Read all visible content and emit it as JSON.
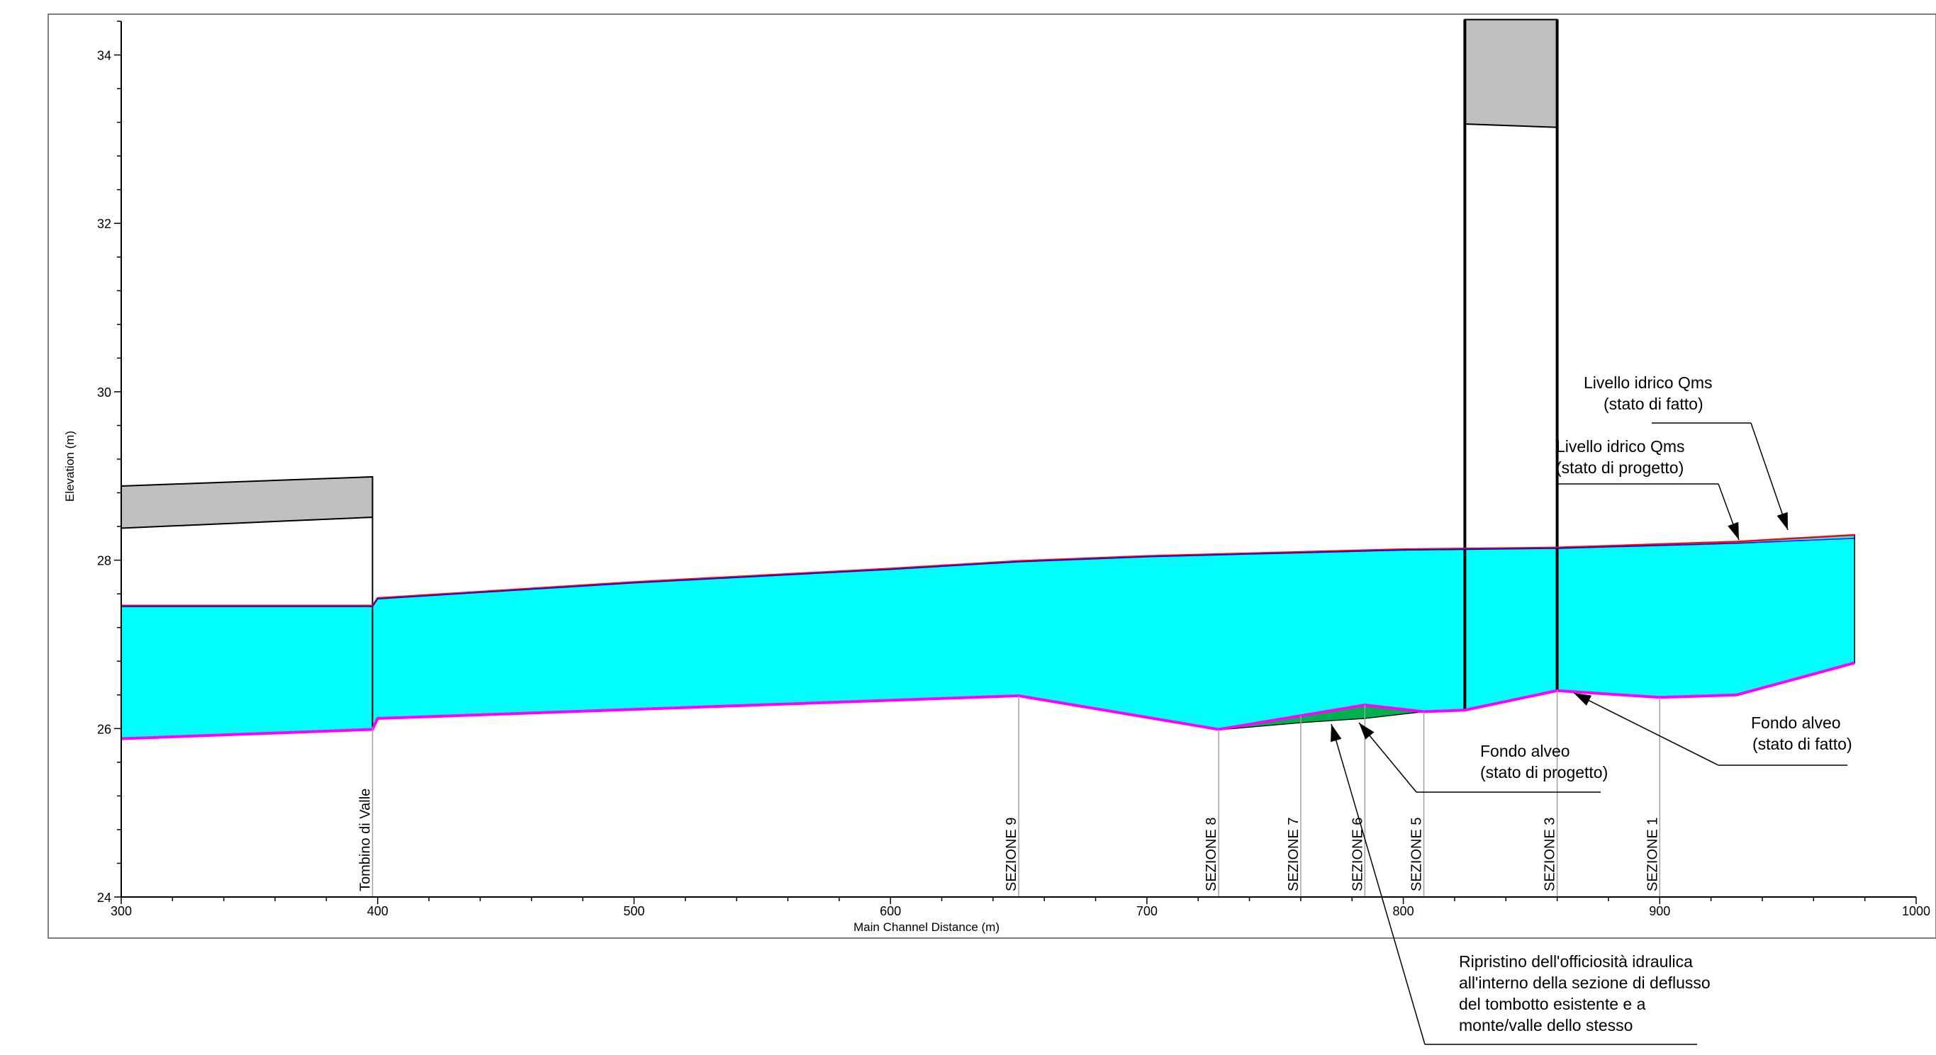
{
  "chart_data": {
    "type": "area",
    "xlabel": "Main Channel Distance (m)",
    "ylabel": "Elevation (m)",
    "xlim": [
      300,
      1000
    ],
    "ylim": [
      24,
      34.4
    ],
    "x_ticks": [
      300,
      400,
      500,
      600,
      700,
      800,
      900,
      1000
    ],
    "y_ticks": [
      24,
      26,
      28,
      30,
      32,
      34
    ],
    "grid": false,
    "colors": {
      "water": "#00ffff",
      "bed_existing": "#ff00ff",
      "bed_project": "#00b050",
      "water_surface_existing": "#ff0000",
      "water_surface_project": "#0000ff",
      "culvert_deck": "#c0c0c0",
      "section_line": "#a0a0a0"
    },
    "series": [
      {
        "key": "bed_existing",
        "x": [
          300,
          398,
          400,
          650,
          728,
          785,
          808,
          824,
          860,
          900,
          930,
          976
        ],
        "values": [
          25.88,
          25.99,
          26.12,
          26.39,
          25.99,
          26.28,
          26.2,
          26.22,
          26.45,
          26.37,
          26.4,
          26.78
        ]
      },
      {
        "key": "bed_project",
        "x": [
          730,
          760,
          785,
          808
        ],
        "values": [
          25.99,
          26.07,
          26.12,
          26.2
        ]
      },
      {
        "key": "water_surface_existing",
        "x": [
          300,
          398,
          400,
          500,
          600,
          650,
          700,
          800,
          860,
          930,
          976
        ],
        "values": [
          27.46,
          27.46,
          27.55,
          27.74,
          27.9,
          27.99,
          28.05,
          28.13,
          28.15,
          28.22,
          28.3
        ]
      },
      {
        "key": "water_surface_project",
        "x": [
          300,
          398,
          400,
          500,
          600,
          650,
          700,
          800,
          860,
          930,
          976
        ],
        "values": [
          27.45,
          27.45,
          27.54,
          27.73,
          27.89,
          27.98,
          28.04,
          28.12,
          28.14,
          28.2,
          28.26
        ]
      }
    ],
    "structures": [
      {
        "key": "tombino-valle",
        "x_left": 300,
        "x_right": 398,
        "soffit": [
          28.38,
          28.51
        ],
        "deck_top": [
          28.88,
          28.99
        ]
      },
      {
        "key": "tombotto-monte",
        "x_left": 824,
        "x_right": 860,
        "soffit": [
          33.18,
          33.14
        ],
        "deck_top": [
          34.42,
          34.42
        ]
      }
    ],
    "sections": [
      {
        "label": "Tombino di Valle",
        "x": 398
      },
      {
        "label": "SEZIONE 9",
        "x": 650
      },
      {
        "label": "SEZIONE 8",
        "x": 728
      },
      {
        "label": "SEZIONE 7",
        "x": 760
      },
      {
        "label": "SEZIONE 6",
        "x": 785
      },
      {
        "label": "SEZIONE 5",
        "x": 808
      },
      {
        "label": "SEZIONE 3",
        "x": 860
      },
      {
        "label": "SEZIONE 1",
        "x": 900
      }
    ],
    "annotations": [
      {
        "key": "ws_existing",
        "lines": [
          "Livello idrico Qms",
          "(stato di fatto)"
        ]
      },
      {
        "key": "ws_project",
        "lines": [
          "Livello idrico Qms",
          "(stato di progetto)"
        ]
      },
      {
        "key": "bed_existing_note",
        "lines": [
          "Fondo alveo",
          "(stato di fatto)"
        ]
      },
      {
        "key": "bed_project_note",
        "lines": [
          "Fondo alveo",
          "(stato di progetto)"
        ]
      },
      {
        "key": "restoration_note",
        "lines": [
          "Ripristino dell'officiosità idraulica",
          "all'interno della sezione di deflusso",
          "del tombotto esistente e a",
          "monte/valle dello stesso"
        ]
      }
    ]
  }
}
